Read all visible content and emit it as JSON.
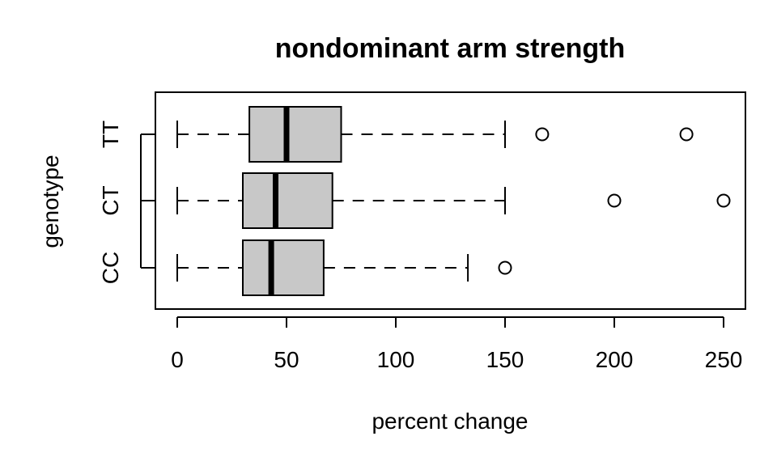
{
  "chart_data": {
    "type": "boxplot",
    "orientation": "horizontal",
    "title": "nondominant arm strength",
    "xlabel": "percent change",
    "ylabel": "genotype",
    "xlim": [
      -10,
      260
    ],
    "x_ticks": [
      0,
      50,
      100,
      150,
      200,
      250
    ],
    "categories": [
      "CC",
      "CT",
      "TT"
    ],
    "box_fill": "#c8c8c8",
    "series": [
      {
        "category": "CC",
        "whisker_low": 0,
        "q1": 30,
        "median": 43,
        "q3": 67,
        "whisker_high": 133,
        "outliers": [
          150
        ]
      },
      {
        "category": "CT",
        "whisker_low": 0,
        "q1": 30,
        "median": 45,
        "q3": 71,
        "whisker_high": 150,
        "outliers": [
          200,
          250
        ]
      },
      {
        "category": "TT",
        "whisker_low": 0,
        "q1": 33,
        "median": 50,
        "q3": 75,
        "whisker_high": 150,
        "outliers": [
          167,
          233
        ]
      }
    ]
  }
}
